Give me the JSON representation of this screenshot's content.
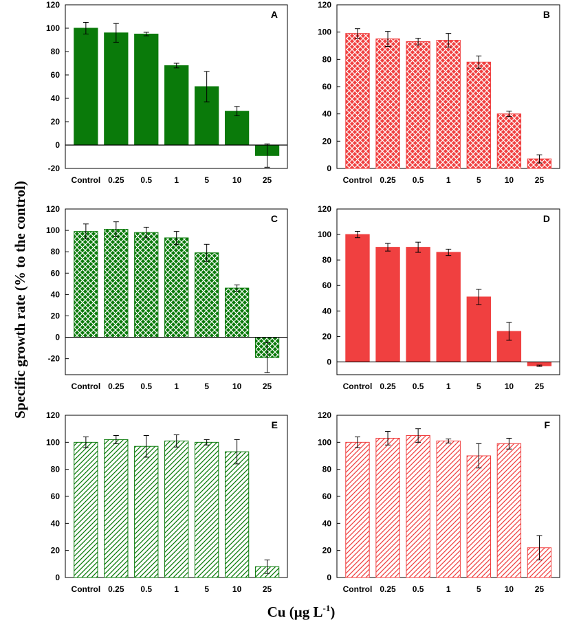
{
  "figure": {
    "ylabel": "Specific growth rate (% to the control)",
    "xlabel": "Cu (µg L",
    "xlabel_sup": "-1",
    "xlabel_end": ")"
  },
  "colors": {
    "green": "#0a7a0a",
    "red": "#f04040"
  },
  "chart_data": [
    {
      "type": "bar",
      "panel": "A",
      "color": "green",
      "fill": "solid",
      "categories": [
        "Control",
        "0.25",
        "0.5",
        "1",
        "5",
        "10",
        "25"
      ],
      "values": [
        100,
        96,
        95,
        68,
        50,
        29,
        -9
      ],
      "errors": [
        5,
        8,
        1.5,
        2,
        13,
        4,
        10
      ],
      "ylim": [
        -20,
        120
      ],
      "yticks": [
        "-20",
        "0",
        "20",
        "40",
        "60",
        "80",
        "100",
        "120"
      ],
      "ytick_values": [
        -20,
        0,
        20,
        40,
        60,
        80,
        100,
        120
      ]
    },
    {
      "type": "bar",
      "panel": "B",
      "color": "red",
      "fill": "crosshatch",
      "categories": [
        "Control",
        "0.25",
        "0.5",
        "1",
        "5",
        "10",
        "25"
      ],
      "values": [
        99,
        95,
        93,
        94,
        78,
        40,
        7
      ],
      "errors": [
        3.5,
        5.5,
        2.5,
        5,
        4.5,
        2,
        3
      ],
      "ylim": [
        0,
        120
      ],
      "yticks": [
        "0",
        "20",
        "40",
        "60",
        "80",
        "100",
        "120"
      ],
      "ytick_values": [
        0,
        20,
        40,
        60,
        80,
        100,
        120
      ]
    },
    {
      "type": "bar",
      "panel": "C",
      "color": "green",
      "fill": "crosshatch",
      "categories": [
        "Control",
        "0.25",
        "0.5",
        "1",
        "5",
        "10",
        "25"
      ],
      "values": [
        99,
        101,
        98,
        93,
        79,
        46,
        -19
      ],
      "errors": [
        7,
        7,
        5,
        6,
        8,
        3,
        14
      ],
      "ylim": [
        -35,
        120
      ],
      "yticks": [
        "-20",
        "0",
        "20",
        "40",
        "60",
        "80",
        "100",
        "120"
      ],
      "ytick_values": [
        -20,
        0,
        20,
        40,
        60,
        80,
        100,
        120
      ]
    },
    {
      "type": "bar",
      "panel": "D",
      "color": "red",
      "fill": "solid",
      "categories": [
        "Control",
        "0.25",
        "0.5",
        "1",
        "5",
        "10",
        "25"
      ],
      "values": [
        100,
        90,
        90,
        86,
        51,
        24,
        -3
      ],
      "errors": [
        2.5,
        3,
        4,
        2.5,
        6,
        7,
        0.5
      ],
      "ylim": [
        -10,
        120
      ],
      "yticks": [
        "0",
        "20",
        "40",
        "60",
        "80",
        "100",
        "120"
      ],
      "ytick_values": [
        0,
        20,
        40,
        60,
        80,
        100,
        120
      ]
    },
    {
      "type": "bar",
      "panel": "E",
      "color": "green",
      "fill": "diagonal",
      "categories": [
        "Control",
        "0.25",
        "0.5",
        "1",
        "5",
        "10",
        "25"
      ],
      "values": [
        100,
        102,
        97,
        101,
        100,
        93,
        8
      ],
      "errors": [
        4,
        3,
        8,
        4.5,
        2,
        9,
        5
      ],
      "ylim": [
        0,
        120
      ],
      "yticks": [
        "0",
        "20",
        "40",
        "60",
        "80",
        "100",
        "120"
      ],
      "ytick_values": [
        0,
        20,
        40,
        60,
        80,
        100,
        120
      ]
    },
    {
      "type": "bar",
      "panel": "F",
      "color": "red",
      "fill": "diagonal",
      "categories": [
        "Control",
        "0.25",
        "0.5",
        "1",
        "5",
        "10",
        "25"
      ],
      "values": [
        100,
        103,
        105,
        101,
        90,
        99,
        22
      ],
      "errors": [
        4,
        5,
        5,
        1.5,
        9,
        4,
        9
      ],
      "ylim": [
        0,
        120
      ],
      "yticks": [
        "0",
        "20",
        "40",
        "60",
        "80",
        "100",
        "120"
      ],
      "ytick_values": [
        0,
        20,
        40,
        60,
        80,
        100,
        120
      ]
    }
  ]
}
